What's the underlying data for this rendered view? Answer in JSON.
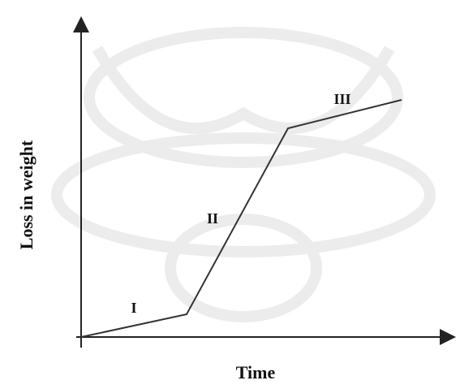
{
  "axes": {
    "y_label": "Loss in weight",
    "x_label": "Time"
  },
  "stages": [
    {
      "label": "I"
    },
    {
      "label": "II"
    },
    {
      "label": "III"
    }
  ]
}
